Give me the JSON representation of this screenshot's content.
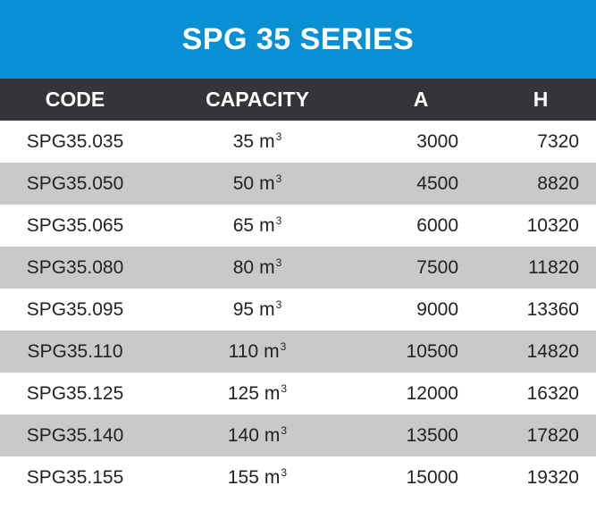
{
  "title": "SPG 35 SERIES",
  "colors": {
    "title_bg": "#0791d4",
    "header_bg": "#333538",
    "row_shade": "#c9c9c9",
    "row_plain": "#ffffff"
  },
  "columns": {
    "code": "CODE",
    "capacity": "CAPACITY",
    "a": "A",
    "h": "H"
  },
  "unit": {
    "base": "m",
    "sup": "3"
  },
  "rows": [
    {
      "code": "SPG35.035",
      "capacity": "35",
      "a": "3000",
      "h": "7320"
    },
    {
      "code": "SPG35.050",
      "capacity": "50",
      "a": "4500",
      "h": "8820"
    },
    {
      "code": "SPG35.065",
      "capacity": "65",
      "a": "6000",
      "h": "10320"
    },
    {
      "code": "SPG35.080",
      "capacity": "80",
      "a": "7500",
      "h": "11820"
    },
    {
      "code": "SPG35.095",
      "capacity": "95",
      "a": "9000",
      "h": "13360"
    },
    {
      "code": "SPG35.110",
      "capacity": "110",
      "a": "10500",
      "h": "14820"
    },
    {
      "code": "SPG35.125",
      "capacity": "125",
      "a": "12000",
      "h": "16320"
    },
    {
      "code": "SPG35.140",
      "capacity": "140",
      "a": "13500",
      "h": "17820"
    },
    {
      "code": "SPG35.155",
      "capacity": "155",
      "a": "15000",
      "h": "19320"
    }
  ]
}
